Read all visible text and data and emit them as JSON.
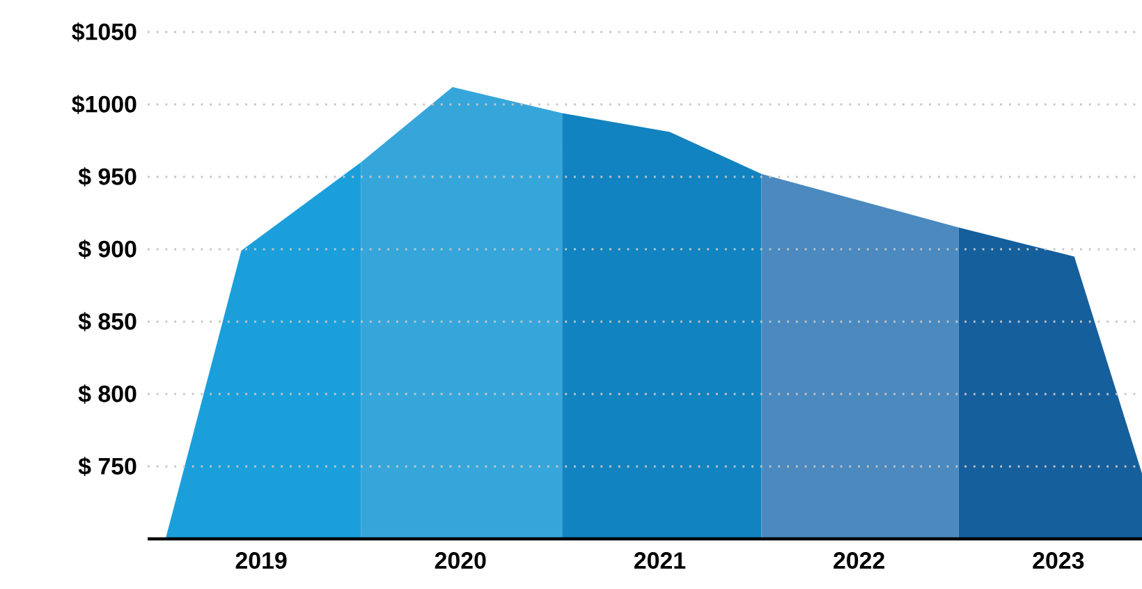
{
  "chart_data": {
    "type": "area",
    "xlim": [
      2018.43,
      2023.42
    ],
    "ylim": [
      700,
      1050
    ],
    "xticks": [
      2019,
      2020,
      2021,
      2022,
      2023
    ],
    "yticks": [
      {
        "value": 750,
        "label": "$ 750"
      },
      {
        "value": 800,
        "label": "$ 800"
      },
      {
        "value": 850,
        "label": "$ 850"
      },
      {
        "value": 900,
        "label": "$ 900"
      },
      {
        "value": 950,
        "label": "$ 950"
      },
      {
        "value": 1000,
        "label": "$1000"
      },
      {
        "value": 1050,
        "label": "$1050"
      }
    ],
    "grid": "y",
    "series": [
      {
        "color": "#1a9fdb",
        "x": [
          2018.52,
          2018.9,
          2019.5
        ],
        "values": [
          700,
          899,
          960
        ]
      },
      {
        "color": "#36a6da",
        "x": [
          2019.5,
          2019.96,
          2020.51
        ],
        "values": [
          960,
          1012,
          994
        ]
      },
      {
        "color": "#1183c0",
        "x": [
          2020.51,
          2021.05,
          2021.51
        ],
        "values": [
          994,
          981,
          952
        ]
      },
      {
        "color": "#4b89bf",
        "x": [
          2021.51,
          2022.5
        ],
        "values": [
          952,
          915
        ]
      },
      {
        "color": "#155f9c",
        "x": [
          2022.5,
          2023.08,
          2023.42
        ],
        "values": [
          915,
          895,
          745
        ]
      }
    ]
  }
}
